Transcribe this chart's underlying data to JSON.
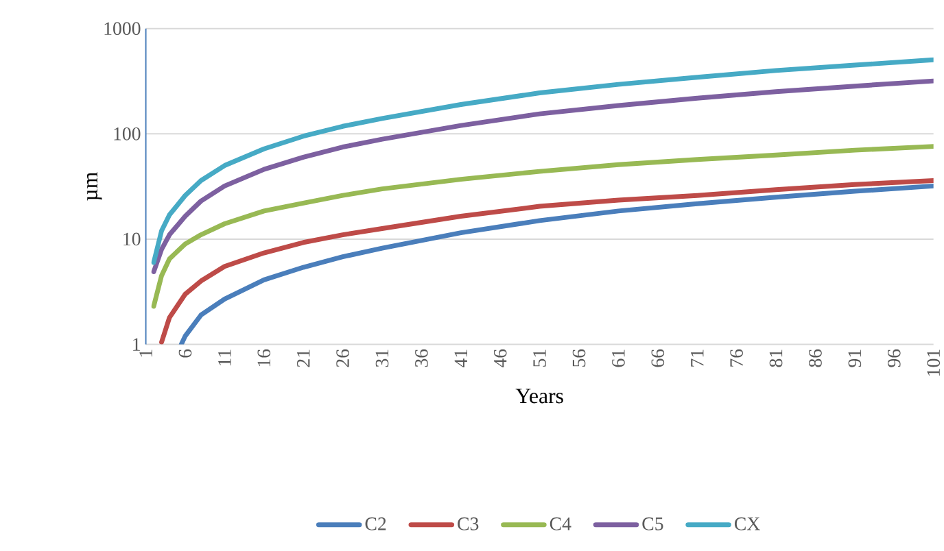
{
  "chart_data": {
    "type": "line",
    "xlabel": "Years",
    "ylabel": "µm",
    "log": "y",
    "grid": "y",
    "legend": "bottom",
    "line_style": "solid",
    "xlim": [
      1,
      101
    ],
    "xticks": [
      1,
      6,
      11,
      16,
      21,
      26,
      31,
      36,
      41,
      46,
      51,
      56,
      61,
      66,
      71,
      76,
      81,
      86,
      91,
      96,
      101
    ],
    "ylim": [
      1,
      1000
    ],
    "yticks": [
      1,
      10,
      100,
      1000
    ],
    "series": [
      {
        "name": "C2",
        "color": "#4a7ebb",
        "x": [
          5.5,
          6,
          8,
          11,
          16,
          21,
          26,
          31,
          41,
          51,
          61,
          71,
          81,
          91,
          101
        ],
        "values": [
          1,
          1.2,
          1.9,
          2.7,
          4.1,
          5.4,
          6.8,
          8.2,
          11.5,
          15,
          18.5,
          21.7,
          25,
          28.5,
          32
        ]
      },
      {
        "name": "C3",
        "color": "#be4b48",
        "x": [
          3,
          4,
          6,
          8,
          11,
          16,
          21,
          26,
          31,
          41,
          51,
          61,
          71,
          81,
          91,
          101
        ],
        "values": [
          1.05,
          1.8,
          3,
          4,
          5.5,
          7.4,
          9.3,
          11,
          12.6,
          16.5,
          20.5,
          23.5,
          26,
          29.5,
          33,
          36
        ]
      },
      {
        "name": "C4",
        "color": "#98b954",
        "x": [
          2,
          3,
          4,
          6,
          8,
          11,
          16,
          21,
          26,
          31,
          41,
          51,
          61,
          71,
          81,
          91,
          101
        ],
        "values": [
          2.3,
          4.5,
          6.5,
          9,
          11,
          14,
          18.5,
          22,
          26,
          30,
          37,
          44,
          51,
          57,
          63,
          70,
          76
        ]
      },
      {
        "name": "C5",
        "color": "#7d60a0",
        "x": [
          2,
          3,
          4,
          6,
          8,
          11,
          16,
          21,
          26,
          31,
          41,
          51,
          61,
          71,
          81,
          91,
          101
        ],
        "values": [
          4.9,
          8,
          11,
          16.5,
          23,
          32,
          46,
          60,
          75,
          89,
          120,
          155,
          186,
          218,
          252,
          284,
          318
        ]
      },
      {
        "name": "CX",
        "color": "#46aac5",
        "x": [
          2,
          3,
          4,
          6,
          8,
          11,
          16,
          21,
          26,
          31,
          41,
          51,
          61,
          71,
          81,
          91,
          101
        ],
        "values": [
          6,
          12,
          17,
          26,
          36,
          50,
          72,
          95,
          118,
          140,
          190,
          245,
          295,
          345,
          400,
          450,
          505
        ]
      }
    ]
  }
}
